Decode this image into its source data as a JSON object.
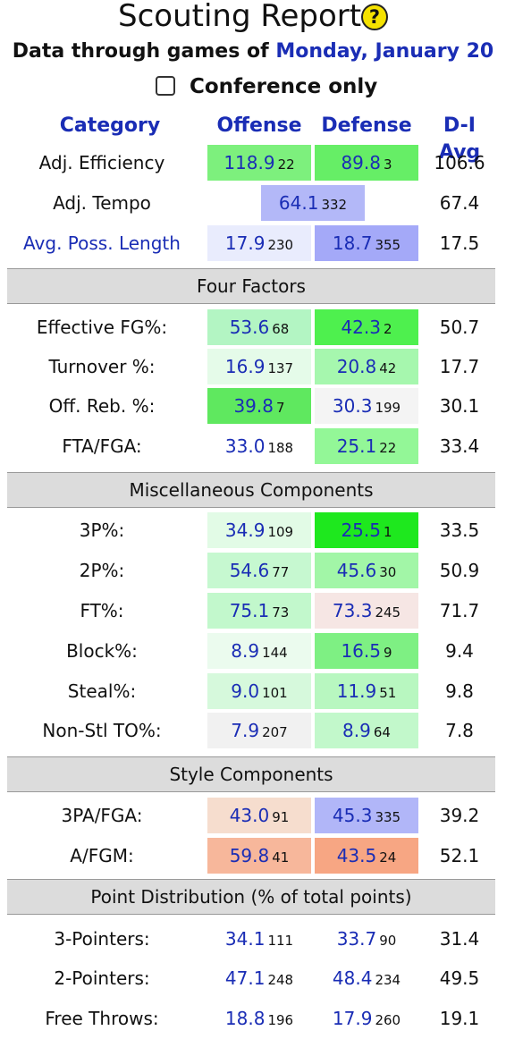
{
  "header": {
    "title": "Scouting Report",
    "help_icon": "?",
    "date_prefix": "Data through games of ",
    "date": "Monday, January 20",
    "conference_only_label": "Conference only",
    "conference_only_checked": false
  },
  "columns": {
    "category": "Category",
    "offense": "Offense",
    "defense": "Defense",
    "avg": "D-I Avg"
  },
  "rows": [
    {
      "label": "Adj. Efficiency",
      "off": "118.9",
      "off_rank": "22",
      "def": "89.8",
      "def_rank": "3",
      "avg": "106.6",
      "off_color": "#7df07d",
      "def_color": "#66ee66"
    },
    {
      "label": "Adj. Tempo",
      "tempo": "64.1",
      "tempo_rank": "332",
      "avg": "67.4",
      "tempo_color": "#b3b8f8"
    },
    {
      "label": "Avg. Poss. Length",
      "off": "17.9",
      "off_rank": "230",
      "def": "18.7",
      "def_rank": "355",
      "avg": "17.5",
      "off_color": "#e9ecfd",
      "def_color": "#a4a9f8"
    }
  ],
  "sections": {
    "four_factors": "Four Factors",
    "misc": "Miscellaneous Components",
    "style": "Style Components",
    "points": "Point Distribution (% of total points)"
  },
  "four_factors": [
    {
      "label": "Effective FG%:",
      "off": "53.6",
      "off_rank": "68",
      "def": "42.3",
      "def_rank": "2",
      "avg": "50.7",
      "off_color": "#b3f5c3",
      "def_color": "#4ef04e"
    },
    {
      "label": "Turnover %:",
      "off": "16.9",
      "off_rank": "137",
      "def": "20.8",
      "def_rank": "42",
      "avg": "17.7",
      "off_color": "#e5fbe9",
      "def_color": "#a6f7ae"
    },
    {
      "label": "Off. Reb. %:",
      "off": "39.8",
      "off_rank": "7",
      "def": "30.3",
      "def_rank": "199",
      "avg": "30.1",
      "off_color": "#5fe85f",
      "def_color": "#f4f4f4"
    },
    {
      "label": "FTA/FGA:",
      "off": "33.0",
      "off_rank": "188",
      "def": "25.1",
      "def_rank": "22",
      "avg": "33.4",
      "off_color": "#ffffff",
      "def_color": "#93f797"
    }
  ],
  "misc": [
    {
      "label": "3P%:",
      "off": "34.9",
      "off_rank": "109",
      "def": "25.5",
      "def_rank": "1",
      "avg": "33.5",
      "off_color": "#e2fbe6",
      "def_color": "#1ee81e"
    },
    {
      "label": "2P%:",
      "off": "54.6",
      "off_rank": "77",
      "def": "45.6",
      "def_rank": "30",
      "avg": "50.9",
      "off_color": "#c6f8d0",
      "def_color": "#a2f6a7"
    },
    {
      "label": "FT%:",
      "off": "75.1",
      "off_rank": "73",
      "def": "73.3",
      "def_rank": "245",
      "avg": "71.7",
      "off_color": "#c2f8cc",
      "def_color": "#f6e6e4"
    },
    {
      "label": "Block%:",
      "off": "8.9",
      "off_rank": "144",
      "def": "16.5",
      "def_rank": "9",
      "avg": "9.4",
      "off_color": "#ebfbee",
      "def_color": "#7ef083"
    },
    {
      "label": "Steal%:",
      "off": "9.0",
      "off_rank": "101",
      "def": "11.9",
      "def_rank": "51",
      "avg": "9.8",
      "off_color": "#d6f9dc",
      "def_color": "#b8f7c0"
    },
    {
      "label": "Non-Stl TO%:",
      "off": "7.9",
      "off_rank": "207",
      "def": "8.9",
      "def_rank": "64",
      "avg": "7.8",
      "off_color": "#f1f1f1",
      "def_color": "#c2f8cb"
    }
  ],
  "style": [
    {
      "label": "3PA/FGA:",
      "off": "43.0",
      "off_rank": "91",
      "def": "45.3",
      "def_rank": "335",
      "avg": "39.2",
      "off_color": "#f6ddce",
      "def_color": "#b1b6f8"
    },
    {
      "label": "A/FGM:",
      "off": "59.8",
      "off_rank": "41",
      "def": "43.5",
      "def_rank": "24",
      "avg": "52.1",
      "off_color": "#f7b79b",
      "def_color": "#f7a683"
    }
  ],
  "points": [
    {
      "label": "3-Pointers:",
      "off": "34.1",
      "off_rank": "111",
      "def": "33.7",
      "def_rank": "90",
      "avg": "31.4"
    },
    {
      "label": "2-Pointers:",
      "off": "47.1",
      "off_rank": "248",
      "def": "48.4",
      "def_rank": "234",
      "avg": "49.5"
    },
    {
      "label": "Free Throws:",
      "off": "18.8",
      "off_rank": "196",
      "def": "17.9",
      "def_rank": "260",
      "avg": "19.1"
    }
  ]
}
